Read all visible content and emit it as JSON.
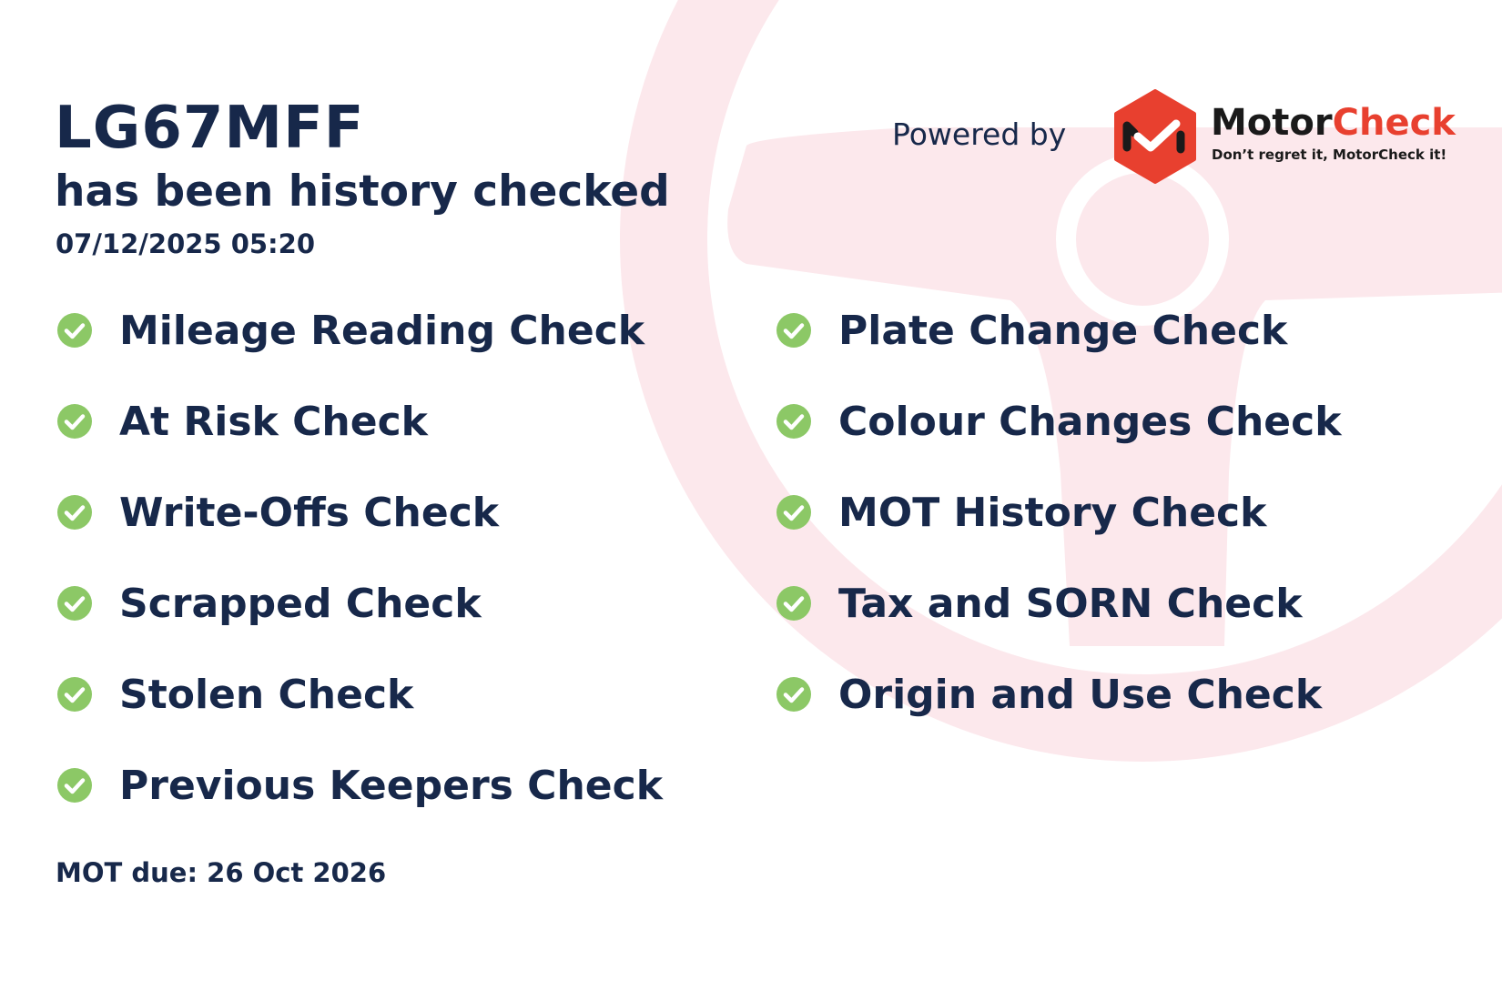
{
  "vehicle": {
    "registration": "LG67MFF",
    "subtitle": "has been history checked",
    "checked_at": "07/12/2025 05:20"
  },
  "branding": {
    "powered_by": "Powered by",
    "brand_part1": "Motor",
    "brand_part2": "Check",
    "tagline": "Don’t regret it, MotorCheck it!",
    "brand_color": "#e8402f",
    "check_color": "#8cc866",
    "background_accent": "#fce8ec"
  },
  "checks_left": [
    {
      "label": "Mileage Reading Check",
      "icon": "check-circle-icon"
    },
    {
      "label": "At Risk Check",
      "icon": "check-circle-icon"
    },
    {
      "label": "Write-Offs Check",
      "icon": "check-circle-icon"
    },
    {
      "label": "Scrapped Check",
      "icon": "check-circle-icon"
    },
    {
      "label": "Stolen Check",
      "icon": "check-circle-icon"
    },
    {
      "label": "Previous Keepers Check",
      "icon": "check-circle-icon"
    }
  ],
  "checks_right": [
    {
      "label": "Plate Change Check",
      "icon": "check-circle-icon"
    },
    {
      "label": "Colour Changes Check",
      "icon": "check-circle-icon"
    },
    {
      "label": "MOT History Check",
      "icon": "check-circle-icon"
    },
    {
      "label": "Tax and SORN Check",
      "icon": "check-circle-icon"
    },
    {
      "label": "Origin and Use Check",
      "icon": "check-circle-icon"
    }
  ],
  "mot_due": "MOT due: 26 Oct 2026"
}
